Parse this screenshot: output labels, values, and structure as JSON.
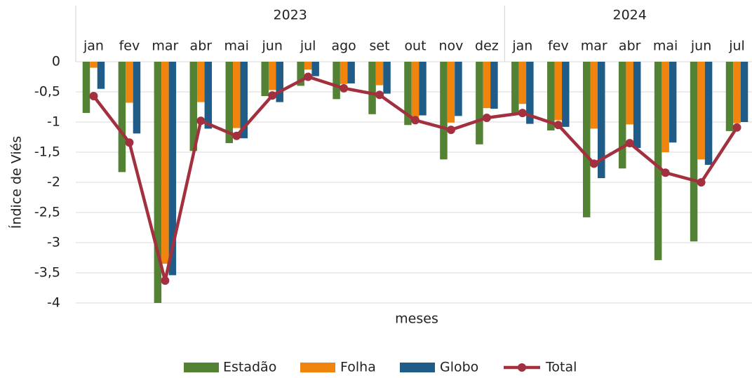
{
  "chart_data": {
    "type": "bar_line",
    "category_groups": [
      {
        "name": "2023",
        "categories": [
          "jan",
          "fev",
          "mar",
          "abr",
          "mai",
          "jun",
          "jul",
          "ago",
          "set",
          "out",
          "nov",
          "dez"
        ]
      },
      {
        "name": "2024",
        "categories": [
          "jan",
          "fev",
          "mar",
          "abr",
          "mai",
          "jun",
          "jul"
        ]
      }
    ],
    "x_label": "meses",
    "y_label": "Índice de Viés",
    "ylim": [
      -4,
      0
    ],
    "yticks": [
      0,
      {
        "value": -0.5,
        "label": "-0,5"
      },
      -1,
      {
        "value": -1.5,
        "label": "-1,5"
      },
      -2,
      {
        "value": -2.5,
        "label": "-2,5"
      },
      -3,
      {
        "value": -3.5,
        "label": "-3,5"
      },
      -4
    ],
    "grid": true,
    "legend": "bottom",
    "series": [
      {
        "name": "Estadão",
        "type": "bar",
        "color": "#548235",
        "values": [
          -0.85,
          -1.83,
          -4.0,
          -1.48,
          -1.35,
          -0.57,
          -0.4,
          -0.62,
          -0.87,
          -1.05,
          -1.62,
          -1.37,
          -0.85,
          -1.14,
          -2.58,
          -1.77,
          -3.29,
          -2.98,
          -1.15
        ]
      },
      {
        "name": "Folha",
        "type": "bar",
        "color": "#f0840c",
        "values": [
          -0.1,
          -0.68,
          -3.35,
          -0.67,
          -1.1,
          -0.47,
          -0.13,
          -0.37,
          -0.39,
          -0.92,
          -1.01,
          -0.77,
          -0.7,
          -0.97,
          -1.11,
          -1.04,
          -1.5,
          -1.62,
          -1.02
        ]
      },
      {
        "name": "Globo",
        "type": "bar",
        "color": "#1f5c88",
        "values": [
          -0.45,
          -1.19,
          -3.54,
          -1.11,
          -1.27,
          -0.67,
          -0.24,
          -0.36,
          -0.53,
          -0.89,
          -0.9,
          -0.78,
          -1.03,
          -1.08,
          -1.93,
          -1.43,
          -1.34,
          -1.71,
          -1.0
        ]
      },
      {
        "name": "Total",
        "type": "line",
        "color": "#a3303f",
        "values": [
          -0.57,
          -1.34,
          -3.63,
          -0.98,
          -1.23,
          -0.56,
          -0.25,
          -0.44,
          -0.55,
          -0.97,
          -1.13,
          -0.93,
          -0.85,
          -1.05,
          -1.69,
          -1.35,
          -1.84,
          -2.0,
          -1.09
        ]
      }
    ]
  }
}
